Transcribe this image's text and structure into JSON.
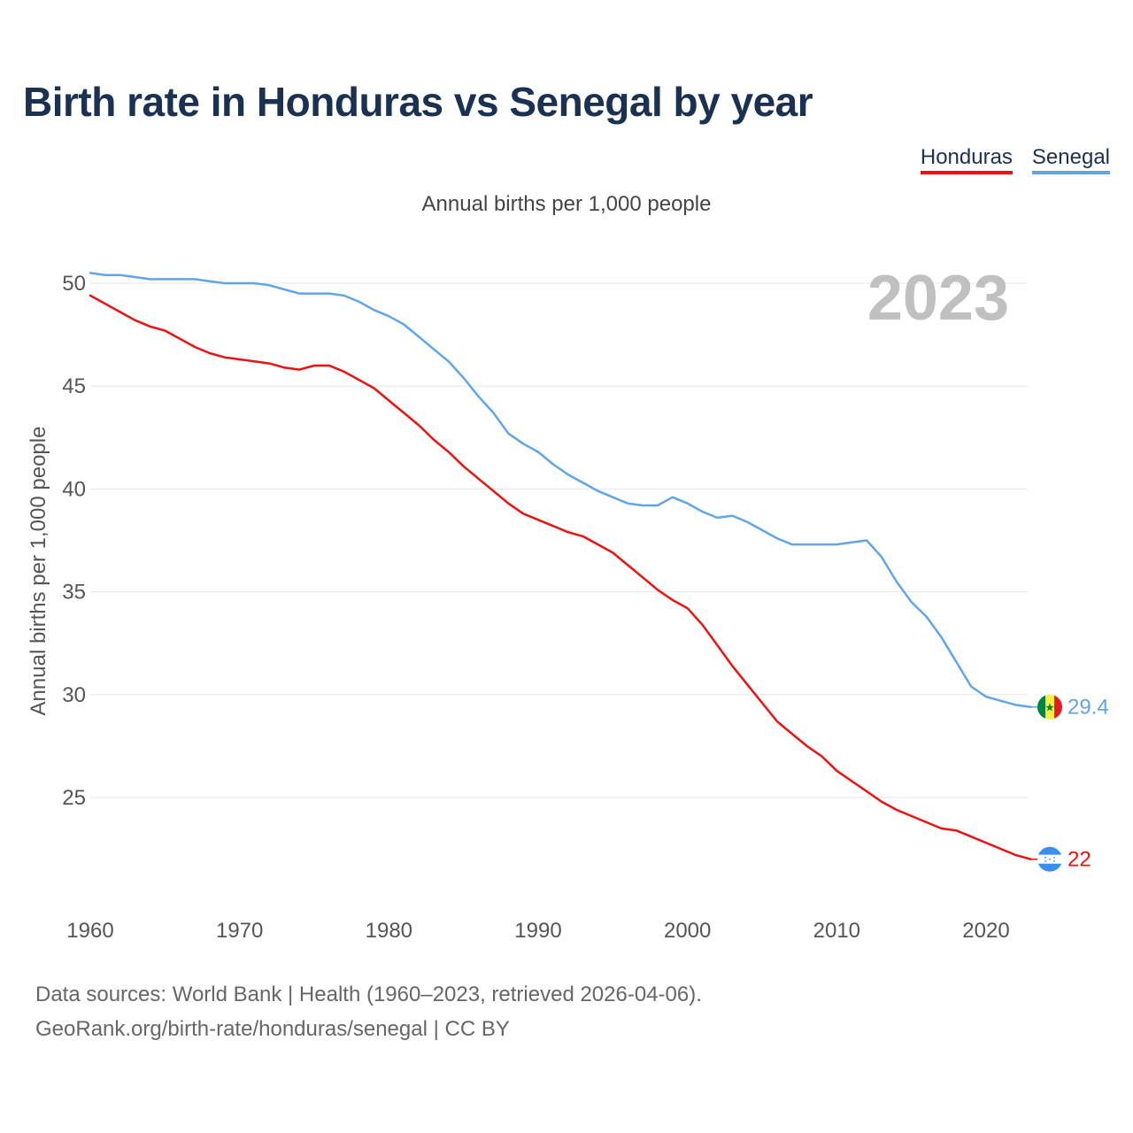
{
  "title": "Birth rate in Honduras vs Senegal by year",
  "subtitle": "Annual births per 1,000 people",
  "legend": [
    {
      "label": "Honduras",
      "color": "#ee1111"
    },
    {
      "label": "Senegal",
      "color": "#60a5e8"
    }
  ],
  "year_watermark": "2023",
  "footer": {
    "line1": "Data sources: World Bank | Health (1960–2023, retrieved 2026-04-06).",
    "line2": "GeoRank.org/birth-rate/honduras/senegal | CC BY"
  },
  "chart_data": {
    "type": "line",
    "title": "Birth rate in Honduras vs Senegal by year",
    "xlabel": "",
    "ylabel": "Annual births per 1,000 people",
    "xlim": [
      1960,
      2023
    ],
    "ylim": [
      20.5,
      51
    ],
    "y_ticks": [
      25,
      30,
      35,
      40,
      45,
      50
    ],
    "x_ticks": [
      1960,
      1970,
      1980,
      1990,
      2000,
      2010,
      2020
    ],
    "grid": true,
    "legend_position": "top-right",
    "end_labels": {
      "Honduras": "22",
      "Senegal": "29.4"
    },
    "series": [
      {
        "name": "Honduras",
        "color": "#ee1111",
        "x": [
          1960,
          1961,
          1962,
          1963,
          1964,
          1965,
          1966,
          1967,
          1968,
          1969,
          1970,
          1971,
          1972,
          1973,
          1974,
          1975,
          1976,
          1977,
          1978,
          1979,
          1980,
          1981,
          1982,
          1983,
          1984,
          1985,
          1986,
          1987,
          1988,
          1989,
          1990,
          1991,
          1992,
          1993,
          1994,
          1995,
          1996,
          1997,
          1998,
          1999,
          2000,
          2001,
          2002,
          2003,
          2004,
          2005,
          2006,
          2007,
          2008,
          2009,
          2010,
          2011,
          2012,
          2013,
          2014,
          2015,
          2016,
          2017,
          2018,
          2019,
          2020,
          2021,
          2022,
          2023
        ],
        "values": [
          49.4,
          49.0,
          48.6,
          48.2,
          47.9,
          47.7,
          47.3,
          46.9,
          46.6,
          46.4,
          46.3,
          46.2,
          46.1,
          45.9,
          45.8,
          46.0,
          46.0,
          45.7,
          45.3,
          44.9,
          44.3,
          43.7,
          43.1,
          42.4,
          41.8,
          41.1,
          40.5,
          39.9,
          39.3,
          38.8,
          38.5,
          38.2,
          37.9,
          37.7,
          37.3,
          36.9,
          36.3,
          35.7,
          35.1,
          34.6,
          34.2,
          33.4,
          32.4,
          31.4,
          30.5,
          29.6,
          28.7,
          28.1,
          27.5,
          27.0,
          26.3,
          25.8,
          25.3,
          24.8,
          24.4,
          24.1,
          23.8,
          23.5,
          23.4,
          23.1,
          22.8,
          22.5,
          22.2,
          22.0
        ]
      },
      {
        "name": "Senegal",
        "color": "#60a5e8",
        "x": [
          1960,
          1961,
          1962,
          1963,
          1964,
          1965,
          1966,
          1967,
          1968,
          1969,
          1970,
          1971,
          1972,
          1973,
          1974,
          1975,
          1976,
          1977,
          1978,
          1979,
          1980,
          1981,
          1982,
          1983,
          1984,
          1985,
          1986,
          1987,
          1988,
          1989,
          1990,
          1991,
          1992,
          1993,
          1994,
          1995,
          1996,
          1997,
          1998,
          1999,
          2000,
          2001,
          2002,
          2003,
          2004,
          2005,
          2006,
          2007,
          2008,
          2009,
          2010,
          2011,
          2012,
          2013,
          2014,
          2015,
          2016,
          2017,
          2018,
          2019,
          2020,
          2021,
          2022,
          2023
        ],
        "values": [
          50.5,
          50.4,
          50.4,
          50.3,
          50.2,
          50.2,
          50.2,
          50.2,
          50.1,
          50.0,
          50.0,
          50.0,
          49.9,
          49.7,
          49.5,
          49.5,
          49.5,
          49.4,
          49.1,
          48.7,
          48.4,
          48.0,
          47.4,
          46.8,
          46.2,
          45.4,
          44.5,
          43.7,
          42.7,
          42.2,
          41.8,
          41.2,
          40.7,
          40.3,
          39.9,
          39.6,
          39.3,
          39.2,
          39.2,
          39.6,
          39.3,
          38.9,
          38.6,
          38.7,
          38.4,
          38.0,
          37.6,
          37.3,
          37.3,
          37.3,
          37.3,
          37.4,
          37.5,
          36.7,
          35.5,
          34.5,
          33.8,
          32.8,
          31.6,
          30.4,
          29.9,
          29.7,
          29.5,
          29.4
        ]
      }
    ]
  }
}
